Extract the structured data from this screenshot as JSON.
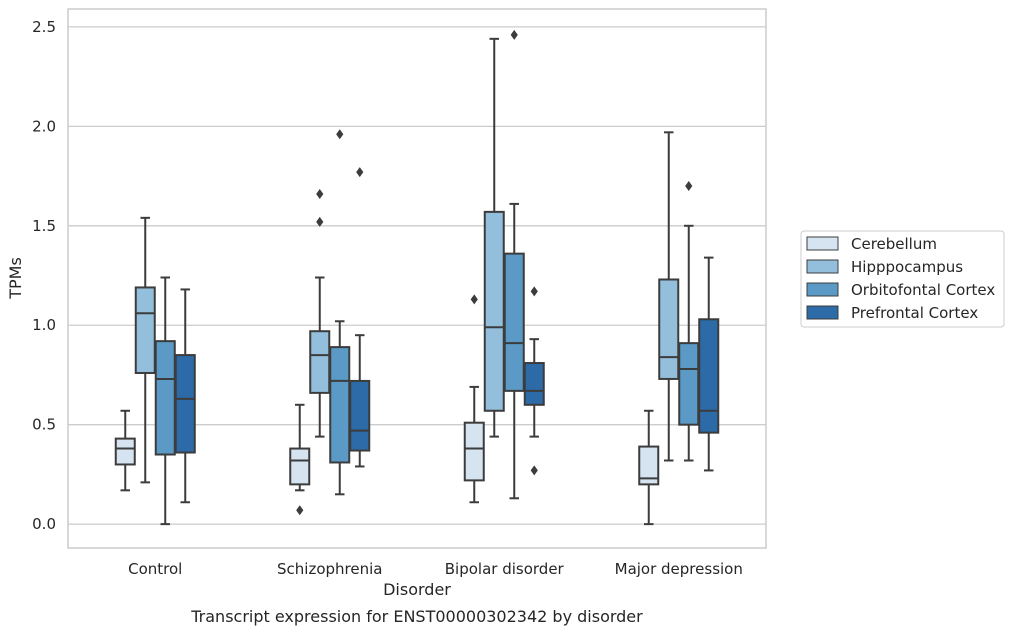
{
  "chart_data": {
    "type": "boxplot",
    "xlabel": "Disorder",
    "ylabel": "TPMs",
    "caption": "Transcript expression for ENST00000302342 by disorder",
    "ylim": [
      -0.12,
      2.59
    ],
    "yticks": [
      "0.0",
      "0.5",
      "1.0",
      "1.5",
      "2.0",
      "2.5"
    ],
    "grid": "horizontal",
    "legend_position": "right",
    "categories": [
      "Control",
      "Schizophrenia",
      "Bipolar disorder",
      "Major depression"
    ],
    "series": [
      {
        "name": "Cerebellum",
        "color": "#d6e4f2",
        "boxes": [
          {
            "whislo": 0.17,
            "q1": 0.3,
            "med": 0.38,
            "q3": 0.43,
            "whishi": 0.57,
            "fliers": []
          },
          {
            "whislo": 0.17,
            "q1": 0.2,
            "med": 0.32,
            "q3": 0.38,
            "whishi": 0.6,
            "fliers": [
              0.07
            ]
          },
          {
            "whislo": 0.11,
            "q1": 0.22,
            "med": 0.38,
            "q3": 0.51,
            "whishi": 0.69,
            "fliers": [
              1.13
            ]
          },
          {
            "whislo": 0.0,
            "q1": 0.2,
            "med": 0.23,
            "q3": 0.39,
            "whishi": 0.57,
            "fliers": []
          }
        ]
      },
      {
        "name": "Hipppocampus",
        "color": "#94bfdc",
        "boxes": [
          {
            "whislo": 0.21,
            "q1": 0.76,
            "med": 1.06,
            "q3": 1.19,
            "whishi": 1.54,
            "fliers": []
          },
          {
            "whislo": 0.44,
            "q1": 0.66,
            "med": 0.85,
            "q3": 0.97,
            "whishi": 1.24,
            "fliers": [
              1.52,
              1.66
            ]
          },
          {
            "whislo": 0.44,
            "q1": 0.57,
            "med": 0.99,
            "q3": 1.57,
            "whishi": 2.44,
            "fliers": []
          },
          {
            "whislo": 0.32,
            "q1": 0.73,
            "med": 0.84,
            "q3": 1.23,
            "whishi": 1.97,
            "fliers": []
          }
        ]
      },
      {
        "name": "Orbitofontal Cortex",
        "color": "#5b9ac6",
        "boxes": [
          {
            "whislo": 0.0,
            "q1": 0.35,
            "med": 0.73,
            "q3": 0.92,
            "whishi": 1.24,
            "fliers": []
          },
          {
            "whislo": 0.15,
            "q1": 0.31,
            "med": 0.72,
            "q3": 0.89,
            "whishi": 1.02,
            "fliers": [
              1.96
            ]
          },
          {
            "whislo": 0.13,
            "q1": 0.67,
            "med": 0.91,
            "q3": 1.36,
            "whishi": 1.61,
            "fliers": [
              2.46
            ]
          },
          {
            "whislo": 0.32,
            "q1": 0.5,
            "med": 0.78,
            "q3": 0.91,
            "whishi": 1.5,
            "fliers": [
              1.7
            ]
          }
        ]
      },
      {
        "name": "Prefrontal Cortex",
        "color": "#2c6aa8",
        "boxes": [
          {
            "whislo": 0.11,
            "q1": 0.36,
            "med": 0.63,
            "q3": 0.85,
            "whishi": 1.18,
            "fliers": []
          },
          {
            "whislo": 0.29,
            "q1": 0.37,
            "med": 0.47,
            "q3": 0.72,
            "whishi": 0.95,
            "fliers": [
              1.77
            ]
          },
          {
            "whislo": 0.44,
            "q1": 0.6,
            "med": 0.67,
            "q3": 0.81,
            "whishi": 0.93,
            "fliers": [
              0.27,
              1.17
            ]
          },
          {
            "whislo": 0.27,
            "q1": 0.46,
            "med": 0.57,
            "q3": 1.03,
            "whishi": 1.34,
            "fliers": []
          }
        ]
      }
    ]
  }
}
